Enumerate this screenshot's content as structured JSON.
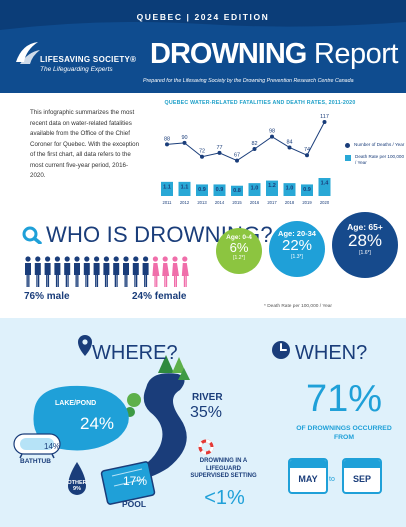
{
  "header": {
    "edition": "QUEBEC  |  2024 EDITION",
    "org_name": "LIFESAVING SOCIETY®",
    "org_tagline": "The Lifeguarding Experts",
    "title_bold": "DROWNING",
    "title_rest": " Report",
    "subtitle": "Prepared for the Lifesaving Society by the Drowning Prevention Research Centre Canada"
  },
  "intro": "This infographic summarizes the most recent data on water-related fatalities available from the Office of the Chief Coroner for Quebec. With the exception of the first chart, all data refers to the most current five-year period, 2016-2020.",
  "chart_data": {
    "type": "bar",
    "title": "QUEBEC WATER-RELATED FATALITIES AND DEATH RATES, 2011-2020",
    "categories": [
      "2011",
      "2012",
      "2013",
      "2014",
      "2015",
      "2016",
      "2017",
      "2018",
      "2019",
      "2020"
    ],
    "series": [
      {
        "name": "Number of Deaths / Year",
        "values": [
          88,
          90,
          72,
          77,
          67,
          82,
          98,
          84,
          74,
          117
        ]
      },
      {
        "name": "Death Rate per 100,000 / Year",
        "values": [
          1.1,
          1.1,
          0.9,
          0.9,
          0.8,
          1.0,
          1.2,
          1.0,
          0.9,
          1.4
        ]
      }
    ],
    "legend": [
      "Number of Deaths / Year",
      "Death Rate per 100,000 / Year"
    ],
    "colors": {
      "line": "#1a3d7a",
      "bar": "#29a8d6"
    }
  },
  "who": {
    "title": "WHO IS DROWNING?",
    "male": "76% male",
    "female": "24% female",
    "male_fraction": 0.76,
    "ages": [
      {
        "label": "Age: 0-4",
        "value": "6%",
        "rate": "[1.2*]"
      },
      {
        "label": "Age: 20-34",
        "value": "22%",
        "rate": "[1.3*]"
      },
      {
        "label": "Age: 65+",
        "value": "28%",
        "rate": "[1.6*]"
      }
    ],
    "note": "* Death Rate per 100,000 / Year"
  },
  "where": {
    "title": "WHERE?",
    "lake_label": "LAKE/POND",
    "lake_value": "24%",
    "river_label": "RIVER",
    "river_value": "35%",
    "bathtub_label": "BATHTUB",
    "bathtub_value": "14%",
    "other_label": "OTHER",
    "other_value": "9%",
    "pool_label": "POOL",
    "pool_value": "17%",
    "guard_label": "DROWNING IN A LIFEGUARD SUPERVISED SETTING",
    "guard_value": "<1%"
  },
  "when": {
    "title": "WHEN?",
    "percent": "71%",
    "desc": "OF DROWNINGS OCCURRED FROM",
    "from": "MAY",
    "to_word": "to",
    "to": "SEP"
  },
  "colors": {
    "navy": "#0f4c8f",
    "dark_text": "#1a3d7a",
    "cyan": "#1fa0d8",
    "green": "#8cc540",
    "light_bg": "#dff1fb",
    "pink": "#f06eaa"
  }
}
